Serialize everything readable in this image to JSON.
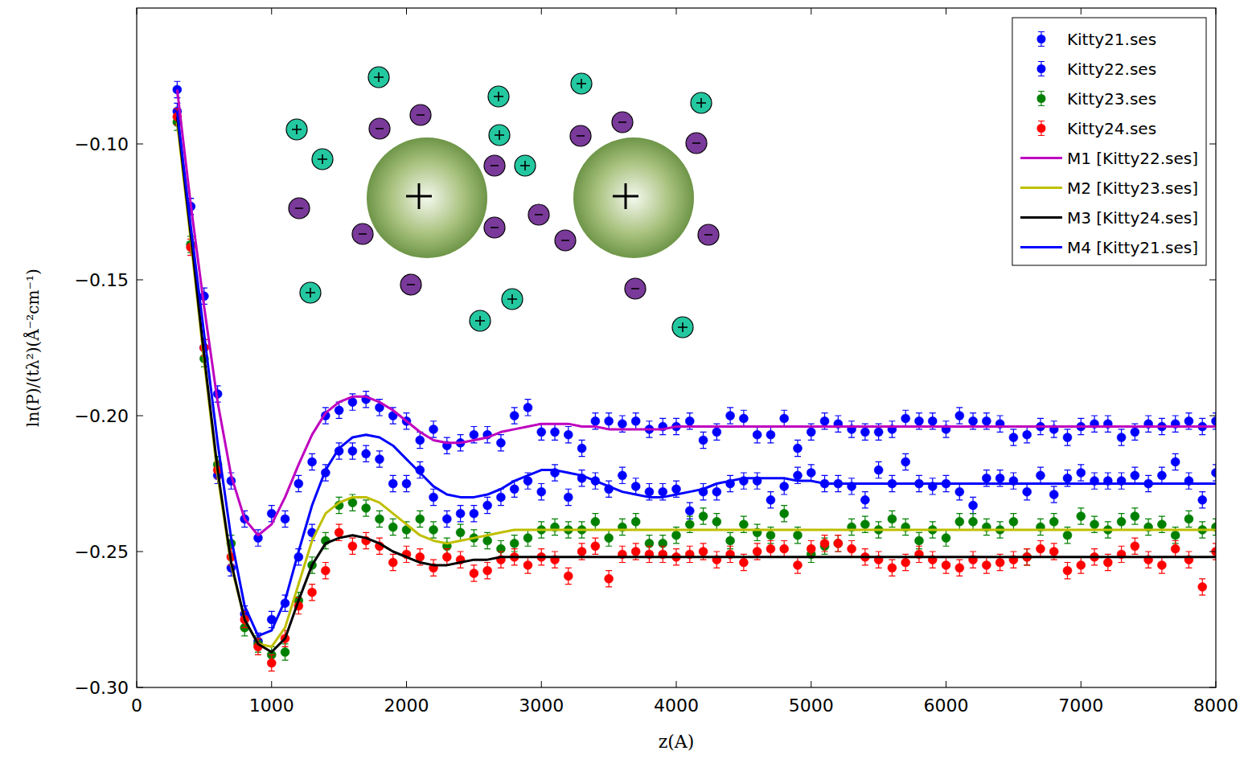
{
  "chart_data": {
    "type": "scatter",
    "x_label": "z(A)",
    "y_label": "ln(P)/(tλ²)(Å⁻²cm⁻¹)",
    "xlim": [
      0,
      8000
    ],
    "ylim": [
      -0.3,
      -0.05
    ],
    "xticks": [
      0,
      1000,
      2000,
      3000,
      4000,
      5000,
      6000,
      7000,
      8000
    ],
    "yticks": [
      {
        "value": -0.3,
        "label": "−0.30"
      },
      {
        "value": -0.25,
        "label": "−0.25"
      },
      {
        "value": -0.2,
        "label": "−0.20"
      },
      {
        "value": -0.15,
        "label": "−0.15"
      },
      {
        "value": -0.1,
        "label": "−0.10"
      }
    ],
    "grid": false,
    "legend": "upper right",
    "x": [
      300,
      400,
      500,
      600,
      700,
      800,
      900,
      1000,
      1100,
      1200,
      1300,
      1400,
      1500,
      1600,
      1700,
      1800,
      1900,
      2000,
      2100,
      2200,
      2300,
      2400,
      2500,
      2600,
      2700,
      2800,
      2900,
      3000,
      3100,
      3200,
      3300,
      3400,
      3500,
      3600,
      3700,
      3800,
      3900,
      4000,
      4100,
      4200,
      4300,
      4400,
      4500,
      4600,
      4700,
      4800,
      4900,
      5000,
      5100,
      5200,
      5300,
      5400,
      5500,
      5600,
      5700,
      5800,
      5900,
      6000,
      6100,
      6200,
      6300,
      6400,
      6500,
      6600,
      6700,
      6800,
      6900,
      7000,
      7100,
      7200,
      7300,
      7400,
      7500,
      7600,
      7700,
      7800,
      7900,
      8000
    ],
    "series": [
      {
        "name": "Kitty21.ses",
        "type": "scatter",
        "color": "#0000ff",
        "marker": "circle",
        "error": 0.003,
        "values": [
          -0.088,
          -0.123,
          -0.175,
          -0.222,
          -0.256,
          -0.273,
          -0.283,
          -0.275,
          -0.269,
          -0.252,
          -0.243,
          -0.221,
          -0.213,
          -0.213,
          -0.214,
          -0.216,
          -0.225,
          -0.225,
          -0.22,
          -0.23,
          -0.238,
          -0.236,
          -0.236,
          -0.233,
          -0.23,
          -0.227,
          -0.224,
          -0.228,
          -0.221,
          -0.23,
          -0.223,
          -0.224,
          -0.227,
          -0.222,
          -0.226,
          -0.228,
          -0.228,
          -0.227,
          -0.235,
          -0.228,
          -0.228,
          -0.225,
          -0.224,
          -0.224,
          -0.231,
          -0.226,
          -0.222,
          -0.221,
          -0.225,
          -0.225,
          -0.226,
          -0.231,
          -0.22,
          -0.225,
          -0.217,
          -0.225,
          -0.226,
          -0.225,
          -0.228,
          -0.233,
          -0.223,
          -0.223,
          -0.224,
          -0.228,
          -0.222,
          -0.229,
          -0.223,
          -0.221,
          -0.224,
          -0.224,
          -0.224,
          -0.222,
          -0.225,
          -0.222,
          -0.217,
          -0.224,
          -0.231,
          -0.221
        ]
      },
      {
        "name": "Kitty22.ses",
        "type": "scatter",
        "color": "#0000ff",
        "marker": "circle",
        "error": 0.003,
        "values": [
          -0.08,
          -0.123,
          -0.156,
          -0.192,
          -0.224,
          -0.238,
          -0.245,
          -0.236,
          -0.238,
          -0.225,
          -0.217,
          -0.2,
          -0.198,
          -0.195,
          -0.194,
          -0.197,
          -0.2,
          -0.202,
          -0.209,
          -0.205,
          -0.211,
          -0.21,
          -0.207,
          -0.207,
          -0.21,
          -0.2,
          -0.197,
          -0.206,
          -0.206,
          -0.207,
          -0.212,
          -0.202,
          -0.202,
          -0.203,
          -0.202,
          -0.205,
          -0.204,
          -0.204,
          -0.202,
          -0.209,
          -0.206,
          -0.2,
          -0.201,
          -0.207,
          -0.207,
          -0.201,
          -0.212,
          -0.206,
          -0.202,
          -0.203,
          -0.205,
          -0.206,
          -0.206,
          -0.205,
          -0.201,
          -0.202,
          -0.202,
          -0.205,
          -0.2,
          -0.202,
          -0.202,
          -0.203,
          -0.208,
          -0.207,
          -0.204,
          -0.205,
          -0.208,
          -0.204,
          -0.203,
          -0.203,
          -0.208,
          -0.206,
          -0.203,
          -0.204,
          -0.203,
          -0.202,
          -0.204,
          -0.202
        ]
      },
      {
        "name": "Kitty23.ses",
        "type": "scatter",
        "color": "#008000",
        "marker": "circle",
        "error": 0.003,
        "values": [
          -0.092,
          -0.137,
          -0.179,
          -0.218,
          -0.247,
          -0.278,
          -0.284,
          -0.288,
          -0.287,
          -0.268,
          -0.255,
          -0.246,
          -0.233,
          -0.232,
          -0.234,
          -0.238,
          -0.241,
          -0.242,
          -0.238,
          -0.242,
          -0.248,
          -0.243,
          -0.245,
          -0.246,
          -0.249,
          -0.247,
          -0.245,
          -0.242,
          -0.241,
          -0.242,
          -0.242,
          -0.239,
          -0.245,
          -0.241,
          -0.239,
          -0.247,
          -0.247,
          -0.244,
          -0.24,
          -0.237,
          -0.239,
          -0.246,
          -0.24,
          -0.243,
          -0.244,
          -0.236,
          -0.244,
          -0.251,
          -0.248,
          -0.247,
          -0.241,
          -0.24,
          -0.242,
          -0.238,
          -0.241,
          -0.246,
          -0.242,
          -0.245,
          -0.239,
          -0.239,
          -0.241,
          -0.242,
          -0.239,
          -0.252,
          -0.241,
          -0.239,
          -0.244,
          -0.237,
          -0.24,
          -0.242,
          -0.239,
          -0.237,
          -0.241,
          -0.24,
          -0.244,
          -0.238,
          -0.242,
          -0.241
        ]
      },
      {
        "name": "Kitty24.ses",
        "type": "scatter",
        "color": "#ff0000",
        "marker": "circle",
        "error": 0.003,
        "values": [
          -0.09,
          -0.138,
          -0.175,
          -0.22,
          -0.252,
          -0.275,
          -0.285,
          -0.291,
          -0.282,
          -0.27,
          -0.265,
          -0.257,
          -0.243,
          -0.248,
          -0.246,
          -0.248,
          -0.254,
          -0.251,
          -0.252,
          -0.256,
          -0.252,
          -0.253,
          -0.258,
          -0.257,
          -0.253,
          -0.252,
          -0.255,
          -0.252,
          -0.253,
          -0.259,
          -0.25,
          -0.248,
          -0.26,
          -0.251,
          -0.25,
          -0.251,
          -0.251,
          -0.252,
          -0.251,
          -0.25,
          -0.253,
          -0.251,
          -0.254,
          -0.25,
          -0.249,
          -0.249,
          -0.255,
          -0.249,
          -0.247,
          -0.247,
          -0.249,
          -0.252,
          -0.253,
          -0.256,
          -0.254,
          -0.251,
          -0.253,
          -0.255,
          -0.256,
          -0.253,
          -0.255,
          -0.254,
          -0.253,
          -0.252,
          -0.249,
          -0.25,
          -0.257,
          -0.255,
          -0.252,
          -0.254,
          -0.251,
          -0.248,
          -0.253,
          -0.255,
          -0.249,
          -0.253,
          -0.263,
          -0.25
        ]
      },
      {
        "name": "M1 [Kitty22.ses]",
        "type": "line",
        "color": "#bf00bf",
        "line_style": "solid",
        "values": [
          -0.08,
          -0.122,
          -0.16,
          -0.195,
          -0.222,
          -0.238,
          -0.244,
          -0.24,
          -0.23,
          -0.218,
          -0.207,
          -0.199,
          -0.195,
          -0.193,
          -0.193,
          -0.195,
          -0.198,
          -0.202,
          -0.206,
          -0.209,
          -0.21,
          -0.21,
          -0.209,
          -0.208,
          -0.206,
          -0.205,
          -0.204,
          -0.203,
          -0.203,
          -0.203,
          -0.204,
          -0.204,
          -0.205,
          -0.205,
          -0.205,
          -0.205,
          -0.205,
          -0.204,
          -0.204,
          -0.204,
          -0.204,
          -0.204,
          -0.204,
          -0.204,
          -0.204,
          -0.204,
          -0.204,
          -0.204,
          -0.204,
          -0.204,
          -0.204,
          -0.204,
          -0.204,
          -0.204,
          -0.204,
          -0.204,
          -0.204,
          -0.204,
          -0.204,
          -0.204,
          -0.204,
          -0.204,
          -0.204,
          -0.204,
          -0.204,
          -0.204,
          -0.204,
          -0.204,
          -0.204,
          -0.204,
          -0.204,
          -0.204,
          -0.204,
          -0.204,
          -0.204,
          -0.204,
          -0.204,
          -0.204
        ]
      },
      {
        "name": "M2 [Kitty23.ses]",
        "type": "line",
        "color": "#bfbf00",
        "line_style": "solid",
        "values": [
          -0.092,
          -0.135,
          -0.18,
          -0.222,
          -0.255,
          -0.275,
          -0.284,
          -0.285,
          -0.278,
          -0.262,
          -0.246,
          -0.236,
          -0.232,
          -0.23,
          -0.23,
          -0.232,
          -0.236,
          -0.24,
          -0.244,
          -0.246,
          -0.247,
          -0.246,
          -0.245,
          -0.244,
          -0.243,
          -0.242,
          -0.242,
          -0.242,
          -0.242,
          -0.242,
          -0.242,
          -0.242,
          -0.242,
          -0.242,
          -0.242,
          -0.242,
          -0.242,
          -0.242,
          -0.242,
          -0.242,
          -0.242,
          -0.242,
          -0.242,
          -0.242,
          -0.242,
          -0.242,
          -0.242,
          -0.242,
          -0.242,
          -0.242,
          -0.242,
          -0.242,
          -0.242,
          -0.242,
          -0.242,
          -0.242,
          -0.242,
          -0.242,
          -0.242,
          -0.242,
          -0.242,
          -0.242,
          -0.242,
          -0.242,
          -0.242,
          -0.242,
          -0.242,
          -0.242,
          -0.242,
          -0.242,
          -0.242,
          -0.242,
          -0.242,
          -0.242,
          -0.242,
          -0.242,
          -0.242,
          -0.242
        ]
      },
      {
        "name": "M3 [Kitty24.ses]",
        "type": "line",
        "color": "#000000",
        "line_style": "solid",
        "values": [
          -0.09,
          -0.133,
          -0.178,
          -0.22,
          -0.254,
          -0.275,
          -0.284,
          -0.287,
          -0.282,
          -0.268,
          -0.255,
          -0.247,
          -0.245,
          -0.244,
          -0.245,
          -0.247,
          -0.25,
          -0.252,
          -0.254,
          -0.255,
          -0.255,
          -0.254,
          -0.253,
          -0.253,
          -0.252,
          -0.252,
          -0.252,
          -0.252,
          -0.252,
          -0.252,
          -0.252,
          -0.252,
          -0.252,
          -0.252,
          -0.252,
          -0.252,
          -0.252,
          -0.252,
          -0.252,
          -0.252,
          -0.252,
          -0.252,
          -0.252,
          -0.252,
          -0.252,
          -0.252,
          -0.252,
          -0.252,
          -0.252,
          -0.252,
          -0.252,
          -0.252,
          -0.252,
          -0.252,
          -0.252,
          -0.252,
          -0.252,
          -0.252,
          -0.252,
          -0.252,
          -0.252,
          -0.252,
          -0.252,
          -0.252,
          -0.252,
          -0.252,
          -0.252,
          -0.252,
          -0.252,
          -0.252,
          -0.252,
          -0.252,
          -0.252,
          -0.252,
          -0.252,
          -0.252,
          -0.252,
          -0.252
        ]
      },
      {
        "name": "M4 [Kitty21.ses]",
        "type": "line",
        "color": "#0000ff",
        "line_style": "solid",
        "values": [
          -0.088,
          -0.13,
          -0.17,
          -0.21,
          -0.245,
          -0.27,
          -0.281,
          -0.279,
          -0.268,
          -0.25,
          -0.233,
          -0.22,
          -0.212,
          -0.208,
          -0.207,
          -0.208,
          -0.211,
          -0.216,
          -0.221,
          -0.226,
          -0.229,
          -0.23,
          -0.23,
          -0.229,
          -0.227,
          -0.224,
          -0.222,
          -0.22,
          -0.22,
          -0.221,
          -0.222,
          -0.224,
          -0.226,
          -0.228,
          -0.229,
          -0.23,
          -0.23,
          -0.229,
          -0.228,
          -0.227,
          -0.225,
          -0.224,
          -0.223,
          -0.223,
          -0.223,
          -0.223,
          -0.224,
          -0.224,
          -0.225,
          -0.225,
          -0.225,
          -0.225,
          -0.225,
          -0.225,
          -0.225,
          -0.225,
          -0.225,
          -0.225,
          -0.225,
          -0.225,
          -0.225,
          -0.225,
          -0.225,
          -0.225,
          -0.225,
          -0.225,
          -0.225,
          -0.225,
          -0.225,
          -0.225,
          -0.225,
          -0.225,
          -0.225,
          -0.225,
          -0.225,
          -0.225,
          -0.225,
          -0.225
        ]
      }
    ]
  }
}
